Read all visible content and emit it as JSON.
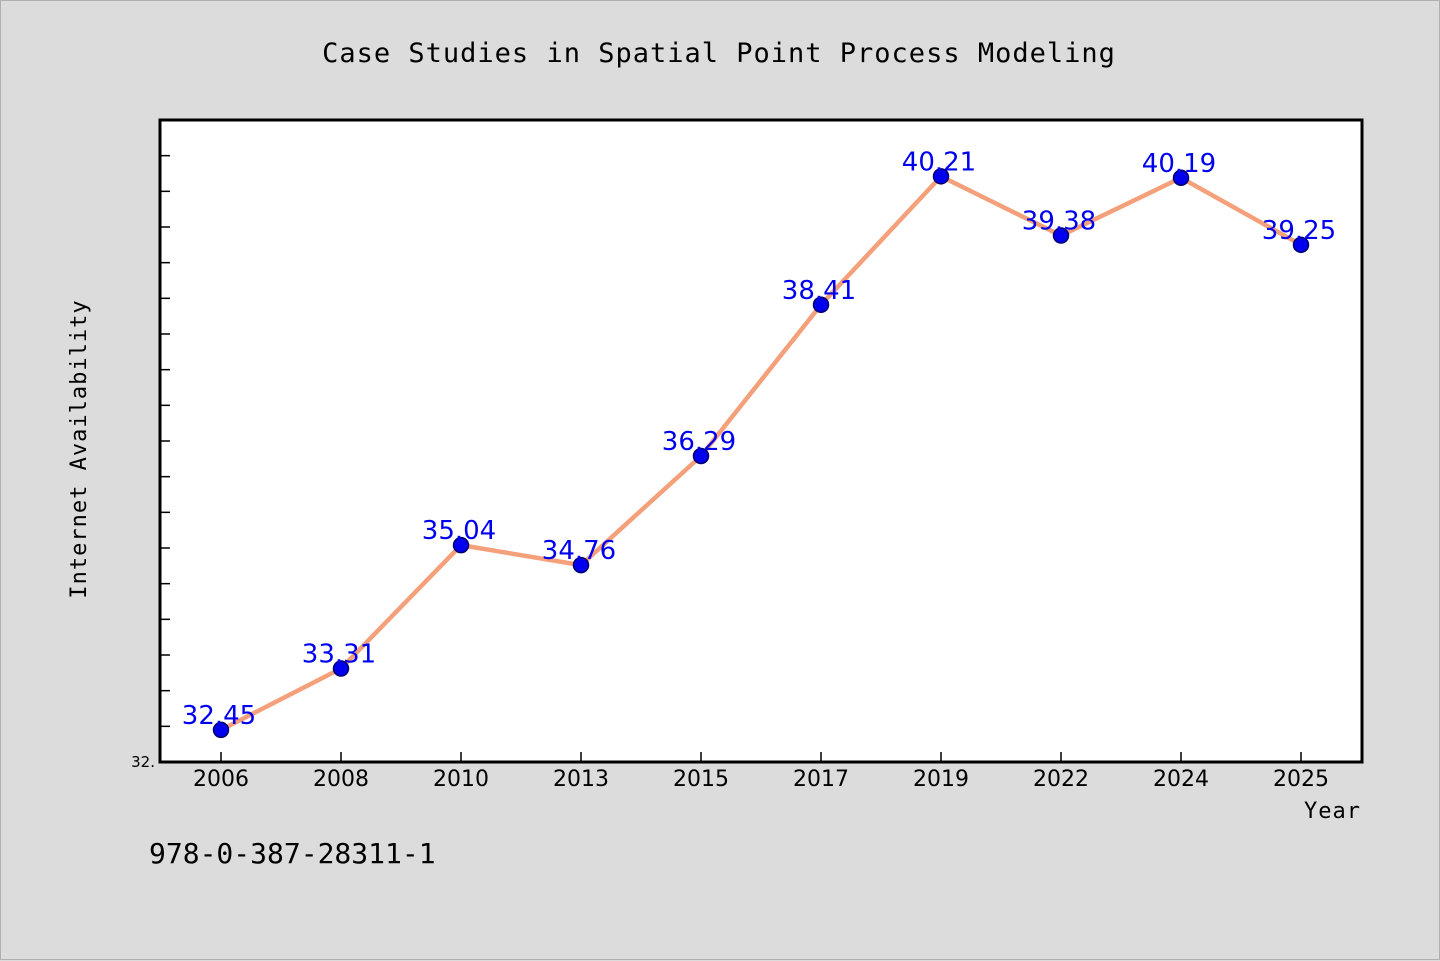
{
  "chart_data": {
    "type": "line",
    "title": "Case Studies in Spatial Point Process Modeling",
    "xlabel": "Year",
    "ylabel": "Internet Availability",
    "categories": [
      "2006",
      "2008",
      "2010",
      "2013",
      "2015",
      "2017",
      "2019",
      "2022",
      "2024",
      "2025"
    ],
    "series": [
      {
        "values": [
          32.45,
          33.31,
          35.04,
          34.76,
          36.29,
          38.41,
          40.21,
          39.38,
          40.19,
          39.25
        ],
        "data_labels": [
          "32.45",
          "33.31",
          "35.04",
          "34.76",
          "36.29",
          "38.41",
          "40.21",
          "39.38",
          "40.19",
          "39.25"
        ]
      }
    ],
    "ylim": [
      32.0,
      41.0
    ],
    "yticks_labeled": [
      "32."
    ],
    "grid": false,
    "colors": {
      "line": "#f4a07a",
      "marker": "#0000ee",
      "data_label": "#0000ee",
      "background": "#dcdcdc",
      "plot_background": "#ffffff"
    }
  },
  "footer": {
    "text": "978-0-387-28311-1"
  }
}
